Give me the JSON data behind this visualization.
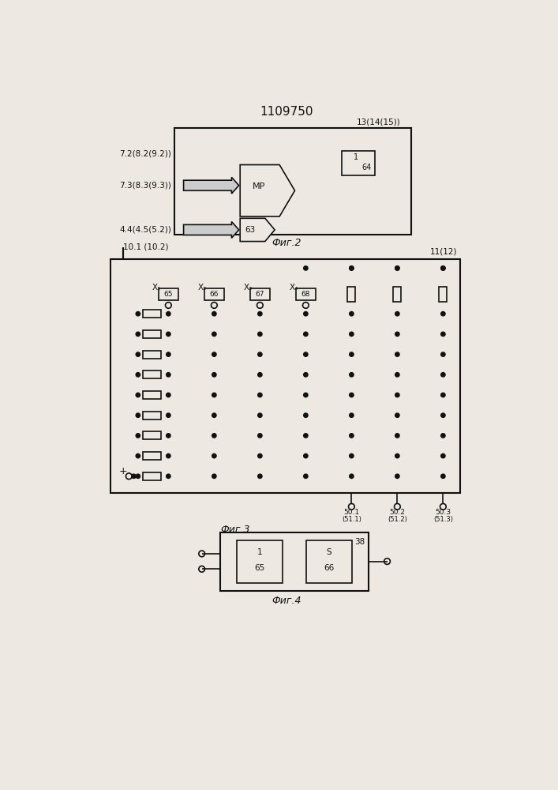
{
  "title": "1109750",
  "fig2_label": "Фиг.2",
  "fig3_label": "Фиг.3",
  "fig4_label": "Фиг.4",
  "bg_color": "#ede9e2",
  "line_color": "#111111"
}
